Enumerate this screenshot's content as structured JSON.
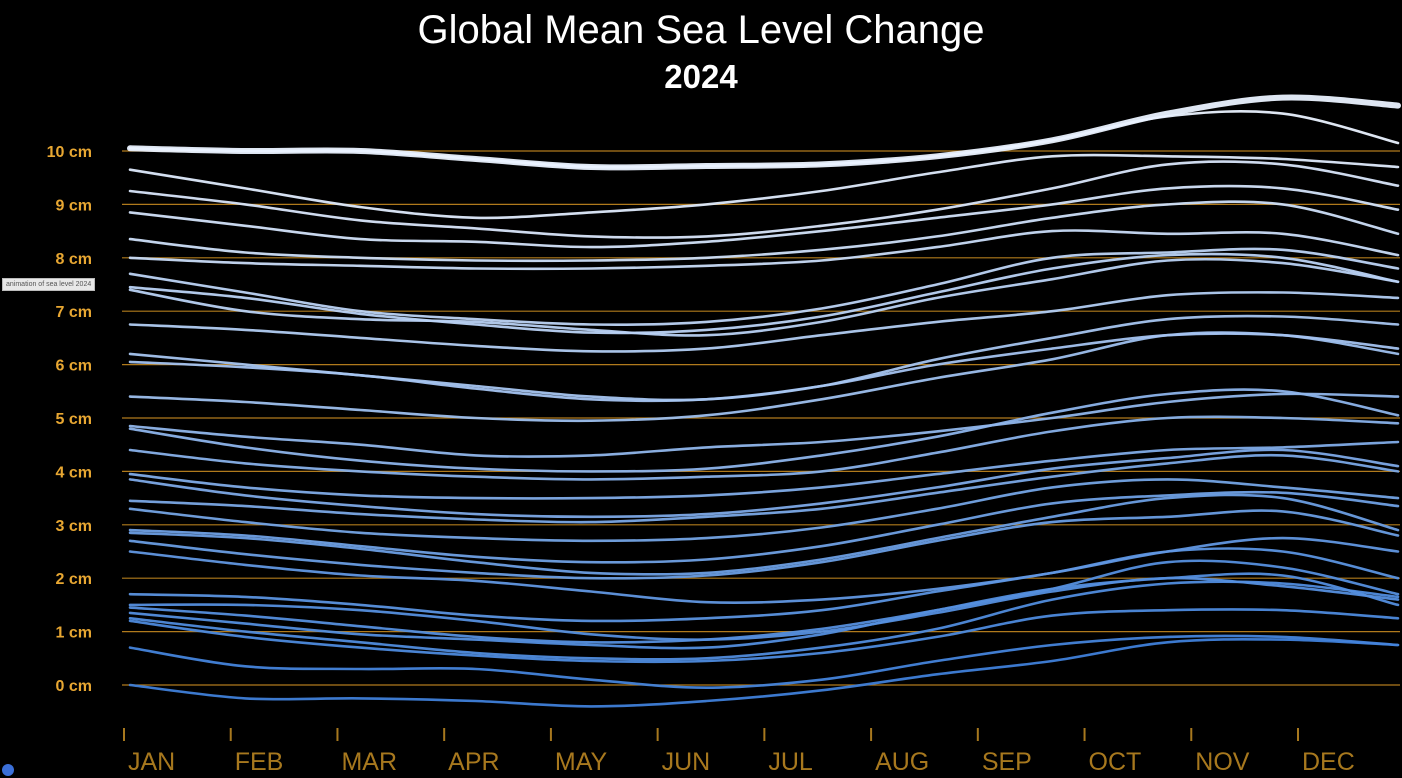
{
  "tooltip": "animation of sea level 2024",
  "chart_data": {
    "type": "line",
    "title": "Global Mean Sea Level Change",
    "subtitle": "2024",
    "xlabel": "",
    "ylabel": "",
    "x": [
      "JAN",
      "FEB",
      "MAR",
      "APR",
      "MAY",
      "JUN",
      "JUL",
      "AUG",
      "SEP",
      "OCT",
      "NOV",
      "DEC"
    ],
    "ylim": [
      -0.5,
      10.8
    ],
    "yticks": [
      0,
      1,
      2,
      3,
      4,
      5,
      6,
      7,
      8,
      9,
      10
    ],
    "ytick_labels": [
      "0 cm",
      "1 cm",
      "2 cm",
      "3 cm",
      "4 cm",
      "5 cm",
      "6 cm",
      "7 cm",
      "8 cm",
      "9 cm",
      "10 cm"
    ],
    "grid": true,
    "colors": {
      "background": "#000000",
      "grid": "#b07a1c",
      "tick_label": "#e8a732",
      "month_label": "#a7781e",
      "line_low": "#3d7fd9",
      "line_high": "#eaf2ff"
    },
    "series": [
      {
        "values": [
          10.05,
          10.0,
          10.0,
          9.85,
          9.7,
          9.72,
          9.75,
          9.9,
          10.2,
          10.7,
          11.0,
          10.85
        ],
        "emphasis": true
      },
      {
        "values": [
          10.05,
          10.0,
          10.0,
          9.85,
          9.7,
          9.72,
          9.75,
          9.9,
          10.2,
          10.65,
          10.7,
          10.15
        ]
      },
      {
        "values": [
          9.65,
          9.3,
          8.95,
          8.75,
          8.85,
          9.0,
          9.25,
          9.6,
          9.9,
          9.9,
          9.85,
          9.7
        ]
      },
      {
        "values": [
          9.25,
          9.0,
          8.7,
          8.55,
          8.4,
          8.4,
          8.6,
          8.9,
          9.3,
          9.75,
          9.75,
          9.35
        ]
      },
      {
        "values": [
          8.85,
          8.6,
          8.35,
          8.3,
          8.2,
          8.3,
          8.5,
          8.75,
          9.0,
          9.3,
          9.3,
          8.9
        ]
      },
      {
        "values": [
          8.35,
          8.1,
          8.0,
          7.95,
          7.95,
          8.0,
          8.15,
          8.4,
          8.75,
          9.0,
          9.0,
          8.45
        ]
      },
      {
        "values": [
          8.0,
          7.9,
          7.85,
          7.8,
          7.8,
          7.85,
          7.95,
          8.2,
          8.5,
          8.45,
          8.45,
          8.05
        ]
      },
      {
        "values": [
          7.7,
          7.35,
          7.0,
          6.85,
          6.75,
          6.8,
          7.05,
          7.5,
          8.0,
          8.1,
          8.15,
          7.8
        ]
      },
      {
        "values": [
          7.45,
          7.25,
          6.95,
          6.75,
          6.6,
          6.65,
          6.9,
          7.35,
          7.8,
          8.05,
          8.0,
          7.55
        ]
      },
      {
        "values": [
          7.4,
          7.0,
          6.85,
          6.8,
          6.65,
          6.55,
          6.8,
          7.25,
          7.6,
          7.95,
          7.9,
          7.55
        ]
      },
      {
        "values": [
          6.75,
          6.65,
          6.5,
          6.35,
          6.25,
          6.3,
          6.55,
          6.8,
          7.0,
          7.3,
          7.35,
          7.25
        ]
      },
      {
        "values": [
          6.2,
          6.0,
          5.8,
          5.6,
          5.4,
          5.35,
          5.6,
          6.1,
          6.5,
          6.85,
          6.9,
          6.75
        ]
      },
      {
        "values": [
          6.05,
          5.95,
          5.8,
          5.55,
          5.35,
          5.35,
          5.6,
          6.0,
          6.3,
          6.55,
          6.55,
          6.3
        ]
      },
      {
        "values": [
          5.4,
          5.3,
          5.15,
          5.0,
          4.95,
          5.05,
          5.35,
          5.75,
          6.1,
          6.55,
          6.55,
          6.2
        ]
      },
      {
        "values": [
          4.85,
          4.65,
          4.5,
          4.3,
          4.3,
          4.45,
          4.55,
          4.75,
          5.0,
          5.3,
          5.45,
          5.4
        ]
      },
      {
        "values": [
          4.8,
          4.45,
          4.2,
          4.05,
          4.0,
          4.05,
          4.3,
          4.65,
          5.1,
          5.45,
          5.5,
          5.05
        ]
      },
      {
        "values": [
          4.4,
          4.15,
          4.0,
          3.9,
          3.85,
          3.9,
          4.0,
          4.35,
          4.75,
          5.0,
          5.0,
          4.9
        ]
      },
      {
        "values": [
          3.95,
          3.7,
          3.55,
          3.5,
          3.5,
          3.55,
          3.7,
          3.95,
          4.2,
          4.4,
          4.45,
          4.55
        ]
      },
      {
        "values": [
          3.85,
          3.55,
          3.35,
          3.2,
          3.15,
          3.2,
          3.4,
          3.7,
          4.05,
          4.25,
          4.4,
          4.1
        ]
      },
      {
        "values": [
          3.45,
          3.35,
          3.2,
          3.1,
          3.05,
          3.15,
          3.3,
          3.6,
          3.9,
          4.15,
          4.3,
          4.0
        ]
      },
      {
        "values": [
          3.3,
          3.05,
          2.85,
          2.75,
          2.7,
          2.75,
          2.95,
          3.3,
          3.7,
          3.85,
          3.7,
          3.5
        ]
      },
      {
        "values": [
          2.9,
          2.8,
          2.6,
          2.4,
          2.3,
          2.35,
          2.6,
          3.0,
          3.4,
          3.55,
          3.6,
          3.35
        ]
      },
      {
        "values": [
          2.85,
          2.75,
          2.55,
          2.3,
          2.1,
          2.1,
          2.35,
          2.75,
          3.15,
          3.5,
          3.5,
          2.9
        ]
      },
      {
        "values": [
          2.7,
          2.45,
          2.25,
          2.1,
          2.0,
          2.05,
          2.3,
          2.7,
          3.05,
          3.15,
          3.25,
          2.8
        ]
      },
      {
        "values": [
          2.5,
          2.25,
          2.05,
          1.95,
          1.75,
          1.55,
          1.6,
          1.8,
          2.1,
          2.5,
          2.75,
          2.5
        ]
      },
      {
        "values": [
          1.7,
          1.65,
          1.5,
          1.3,
          1.2,
          1.25,
          1.4,
          1.75,
          2.1,
          2.5,
          2.5,
          2.0
        ]
      },
      {
        "values": [
          1.5,
          1.5,
          1.4,
          1.2,
          0.95,
          0.85,
          1.0,
          1.35,
          1.75,
          2.0,
          1.85,
          1.6
        ]
      },
      {
        "values": [
          1.45,
          1.3,
          1.1,
          0.9,
          0.8,
          0.85,
          1.05,
          1.4,
          1.8,
          2.3,
          2.2,
          1.7
        ]
      },
      {
        "values": [
          1.35,
          1.15,
          0.95,
          0.85,
          0.75,
          0.7,
          0.95,
          1.4,
          1.8,
          2.0,
          2.05,
          1.5
        ]
      },
      {
        "values": [
          1.25,
          1.0,
          0.8,
          0.6,
          0.5,
          0.5,
          0.7,
          1.05,
          1.6,
          1.9,
          1.9,
          1.65
        ]
      },
      {
        "values": [
          1.2,
          0.9,
          0.7,
          0.55,
          0.45,
          0.45,
          0.6,
          0.9,
          1.3,
          1.4,
          1.4,
          1.25
        ]
      },
      {
        "values": [
          0.7,
          0.35,
          0.3,
          0.3,
          0.1,
          -0.05,
          0.1,
          0.45,
          0.75,
          0.9,
          0.9,
          0.75
        ]
      },
      {
        "values": [
          0.0,
          -0.25,
          -0.25,
          -0.3,
          -0.4,
          -0.3,
          -0.1,
          0.2,
          0.45,
          0.8,
          0.85,
          0.75
        ]
      }
    ]
  }
}
